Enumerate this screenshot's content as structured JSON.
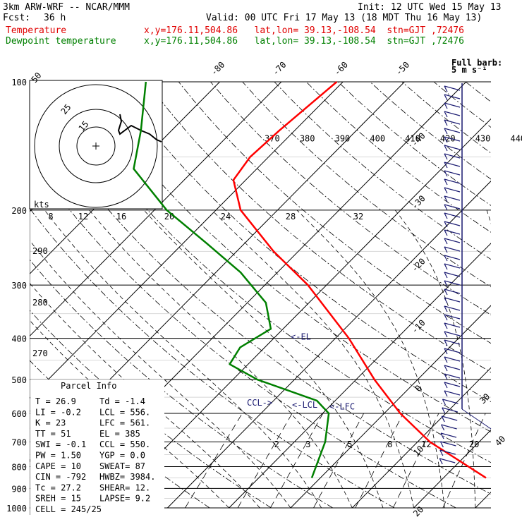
{
  "header": {
    "model": "3km ARW-WRF -- NCAR/MMM",
    "init": "Init: 12 UTC Wed 15 May 13",
    "fcst_label": "Fcst:",
    "fcst_value": "36 h",
    "valid": "Valid: 00 UTC Fri 17 May 13 (18 MDT Thu 16 May 13)",
    "temp_label": "Temperature",
    "dew_label": "Dewpoint temperature",
    "temp_info": "x,y=176.11,504.86   lat,lon= 39.13,-108.54  stn=GJT ,72476",
    "dew_info": "x,y=176.11,504.86   lat,lon= 39.13,-108.54  stn=GJT ,72476"
  },
  "colors": {
    "temperature": "#ff0000",
    "dewpoint": "#008000",
    "barbs": "#191970",
    "adiabat": "#000000"
  },
  "chart_data": {
    "type": "line",
    "pressure_levels": [
      100,
      200,
      300,
      400,
      500,
      600,
      700,
      800,
      900,
      1000
    ],
    "pressure_labels": [
      "100",
      "200",
      "300",
      "400",
      "500",
      "600",
      "700",
      "800",
      "900",
      "1000"
    ],
    "isotherm_labels": [
      "-80",
      "-70",
      "-60",
      "-50",
      "-40",
      "-30",
      "-20",
      "-10",
      "0",
      "10",
      "20",
      "30",
      "40"
    ],
    "theta_labels": [
      "370",
      "380",
      "390",
      "400",
      "410",
      "420",
      "430",
      "440"
    ],
    "theta_left_labels": [
      "290",
      "280",
      "270"
    ],
    "mixing_ratio_labels": [
      "2",
      "3",
      "5",
      "8",
      "12",
      "20"
    ],
    "hodo_speed_labels": [
      "8",
      "12",
      "16",
      "20",
      "24",
      "28",
      "32"
    ],
    "hodo_ring_labels": [
      "50",
      "25",
      "15"
    ],
    "hodo_kts": "kts",
    "barb_legend": [
      "Full barb:",
      "5 m s⁻¹"
    ],
    "series": [
      {
        "name": "Temperature",
        "points": [
          {
            "p": 850,
            "t": 26.9
          },
          {
            "p": 700,
            "t": 12.0
          },
          {
            "p": 600,
            "t": 2.6
          },
          {
            "p": 500,
            "t": -7.0
          },
          {
            "p": 400,
            "t": -17.8
          },
          {
            "p": 300,
            "t": -33.0
          },
          {
            "p": 250,
            "t": -44.0
          },
          {
            "p": 200,
            "t": -56.0
          },
          {
            "p": 170,
            "t": -62.0
          },
          {
            "p": 150,
            "t": -63.0
          },
          {
            "p": 130,
            "t": -62.5
          },
          {
            "p": 100,
            "t": -61.0
          }
        ]
      },
      {
        "name": "Dewpoint temperature",
        "points": [
          {
            "p": 850,
            "t": -1.4
          },
          {
            "p": 700,
            "t": -5.0
          },
          {
            "p": 600,
            "t": -9.0
          },
          {
            "p": 560,
            "t": -13.0
          },
          {
            "p": 500,
            "t": -26.0
          },
          {
            "p": 460,
            "t": -33.0
          },
          {
            "p": 420,
            "t": -34.0
          },
          {
            "p": 380,
            "t": -32.0
          },
          {
            "p": 330,
            "t": -37.0
          },
          {
            "p": 280,
            "t": -46.0
          },
          {
            "p": 240,
            "t": -56.0
          },
          {
            "p": 200,
            "t": -68.0
          },
          {
            "p": 160,
            "t": -80.0
          },
          {
            "p": 130,
            "t": -85.0
          },
          {
            "p": 100,
            "t": -92.0
          }
        ]
      }
    ],
    "annotations": [
      "<-EL",
      "<-LCL",
      "<-LFC",
      "CCL->"
    ]
  },
  "parcel_info": {
    "title": "Parcel Info",
    "rows": [
      [
        "T  =   26.9",
        "Td =  -1.4"
      ],
      [
        "LI =   -0.2",
        "LCL =  556."
      ],
      [
        "K  =     23",
        "LFC = 561."
      ],
      [
        "TT =     51",
        "EL  =  385"
      ],
      [
        "SWI =  -0.1",
        "CCL =  550."
      ],
      [
        "PW =   1.50",
        "YGP =  0.0"
      ],
      [
        "CAPE =   10",
        "SWEAT=   87"
      ],
      [
        "CIN =  -792",
        "HWBZ= 3984."
      ],
      [
        "Tc =   27.2",
        "SHEAR=  12."
      ],
      [
        "SREH =   15",
        "LAPSE=  9.2"
      ],
      [
        "CELL = 245/25",
        ""
      ]
    ]
  }
}
